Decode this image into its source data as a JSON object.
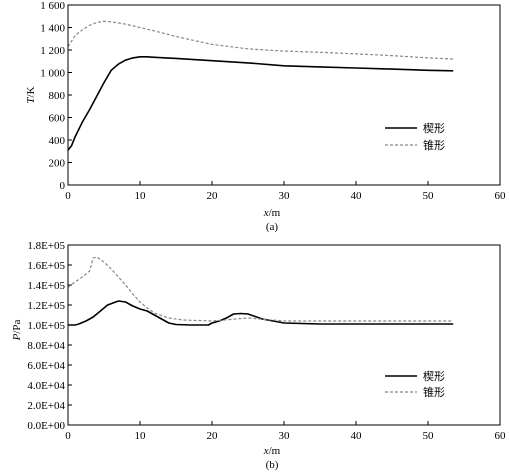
{
  "chart_data": [
    {
      "type": "line",
      "caption": "(a)",
      "xlabel_var": "x",
      "xlabel_unit": "/m",
      "ylabel_var": "T",
      "ylabel_unit": "/K",
      "xlim": [
        0,
        60
      ],
      "ylim": [
        0,
        1600
      ],
      "xticks": [
        0,
        10,
        20,
        30,
        40,
        50,
        60
      ],
      "yticks": [
        0,
        200,
        400,
        600,
        800,
        1000,
        1200,
        1400,
        1600
      ],
      "ytick_labels": [
        "0",
        "200",
        "400",
        "600",
        "800",
        "1 000",
        "1 200",
        "1 400",
        "1 600"
      ],
      "grid": false,
      "legend_position": "right-center",
      "series": [
        {
          "name": "楔形",
          "style": "solid",
          "color": "#000000",
          "x": [
            0,
            0.5,
            1,
            2,
            3,
            4,
            5,
            6,
            7,
            8,
            9,
            10,
            11,
            12,
            15,
            20,
            25,
            30,
            35,
            40,
            45,
            50,
            53.5
          ],
          "y": [
            310,
            350,
            430,
            560,
            670,
            790,
            910,
            1020,
            1075,
            1110,
            1130,
            1140,
            1140,
            1135,
            1125,
            1105,
            1085,
            1060,
            1050,
            1040,
            1030,
            1020,
            1015
          ]
        },
        {
          "name": "锥形",
          "style": "dashed",
          "color": "#888888",
          "x": [
            0,
            0.5,
            1,
            2,
            3,
            4,
            5,
            6,
            7,
            8,
            10,
            12,
            15,
            20,
            25,
            30,
            35,
            40,
            45,
            50,
            53.5
          ],
          "y": [
            1230,
            1280,
            1330,
            1380,
            1420,
            1445,
            1455,
            1450,
            1440,
            1430,
            1400,
            1370,
            1320,
            1250,
            1210,
            1190,
            1180,
            1165,
            1150,
            1130,
            1120
          ]
        }
      ]
    },
    {
      "type": "line",
      "caption": "(b)",
      "xlabel_var": "x",
      "xlabel_unit": "/m",
      "ylabel_var": "P",
      "ylabel_unit": "/Pa",
      "xlim": [
        0,
        60
      ],
      "ylim": [
        0,
        180000
      ],
      "xticks": [
        0,
        10,
        20,
        30,
        40,
        50,
        60
      ],
      "yticks": [
        0,
        20000,
        40000,
        60000,
        80000,
        100000,
        120000,
        140000,
        160000,
        180000
      ],
      "ytick_labels": [
        "0.0E+00",
        "2.0E+04",
        "4.0E+04",
        "6.0E+04",
        "8.0E+04",
        "1.0E+05",
        "1.2E+05",
        "1.4E+05",
        "1.6E+05",
        "1.8E+05"
      ],
      "grid": false,
      "legend_position": "bottom-right",
      "series": [
        {
          "name": "楔形",
          "style": "solid",
          "color": "#000000",
          "x": [
            0,
            1,
            1.5,
            2.5,
            3.5,
            4.5,
            5.5,
            7,
            8,
            9,
            10,
            11,
            12,
            13,
            14,
            15,
            17,
            19.5,
            20,
            21,
            22,
            23,
            24,
            25,
            27,
            30,
            35,
            40,
            45,
            50,
            53.5
          ],
          "y": [
            100000,
            100000,
            101000,
            104000,
            108000,
            114000,
            120000,
            124000,
            123000,
            119000,
            116000,
            114000,
            110000,
            106000,
            102000,
            100500,
            100000,
            100000,
            102000,
            104000,
            107000,
            111000,
            111500,
            111000,
            106000,
            102000,
            101000,
            101000,
            101000,
            101000,
            101000
          ]
        },
        {
          "name": "锥形",
          "style": "dashed",
          "color": "#888888",
          "x": [
            0,
            1,
            2,
            3,
            3.5,
            4,
            5,
            6,
            7,
            8,
            9,
            10,
            11,
            12,
            14,
            16,
            20,
            25,
            30,
            35,
            40,
            45,
            50,
            53.5
          ],
          "y": [
            138000,
            143000,
            148000,
            154000,
            167000,
            168000,
            163000,
            156000,
            148000,
            140000,
            131000,
            123000,
            117000,
            112000,
            107000,
            105000,
            104000,
            107000,
            104000,
            104000,
            104000,
            104000,
            104000,
            104000
          ]
        }
      ]
    }
  ]
}
